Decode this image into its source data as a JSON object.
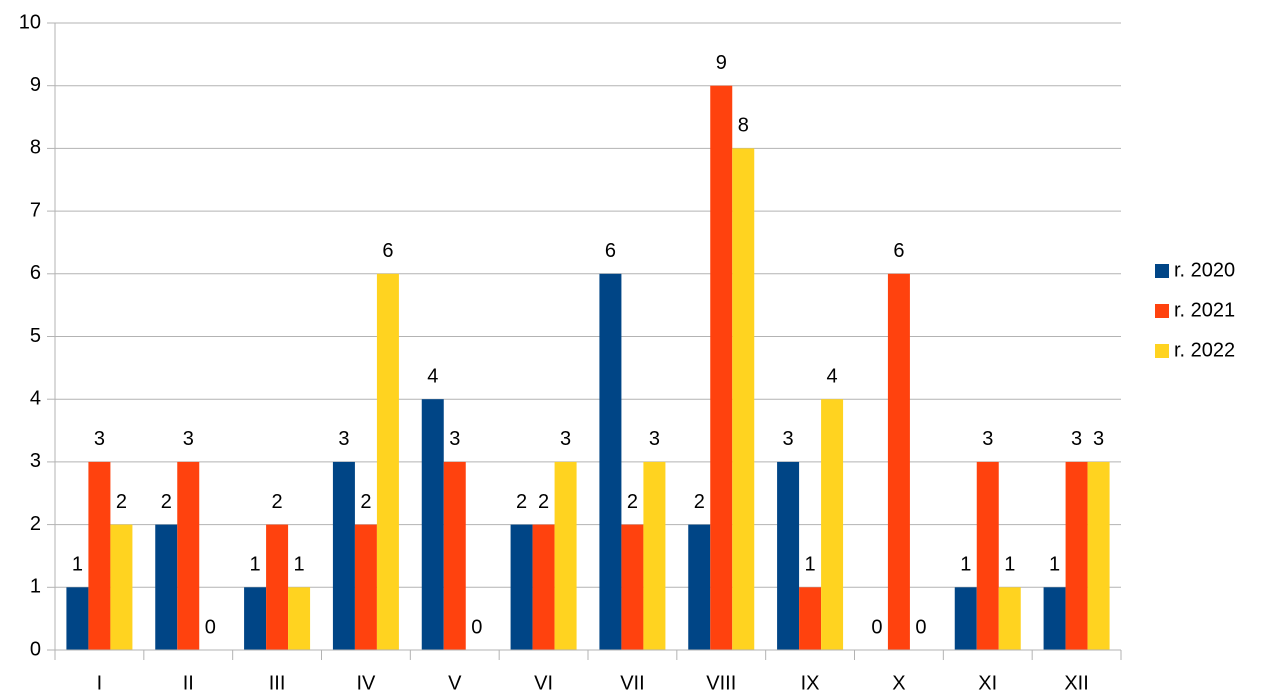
{
  "chart_data": {
    "type": "bar",
    "categories": [
      "I",
      "II",
      "III",
      "IV",
      "V",
      "VI",
      "VII",
      "VIII",
      "IX",
      "X",
      "XI",
      "XII"
    ],
    "series": [
      {
        "name": "r. 2020",
        "color": "#004586",
        "values": [
          1,
          2,
          1,
          3,
          4,
          2,
          6,
          2,
          3,
          0,
          1,
          1
        ]
      },
      {
        "name": "r. 2021",
        "color": "#ff420e",
        "values": [
          3,
          3,
          2,
          2,
          3,
          2,
          2,
          9,
          1,
          6,
          3,
          3
        ]
      },
      {
        "name": "r. 2022",
        "color": "#ffd320",
        "values": [
          2,
          0,
          1,
          6,
          0,
          3,
          3,
          8,
          4,
          0,
          1,
          3
        ]
      }
    ],
    "ylim": [
      0,
      10
    ],
    "yticks": [
      0,
      1,
      2,
      3,
      4,
      5,
      6,
      7,
      8,
      9,
      10
    ],
    "grid": true,
    "legend": "right"
  }
}
